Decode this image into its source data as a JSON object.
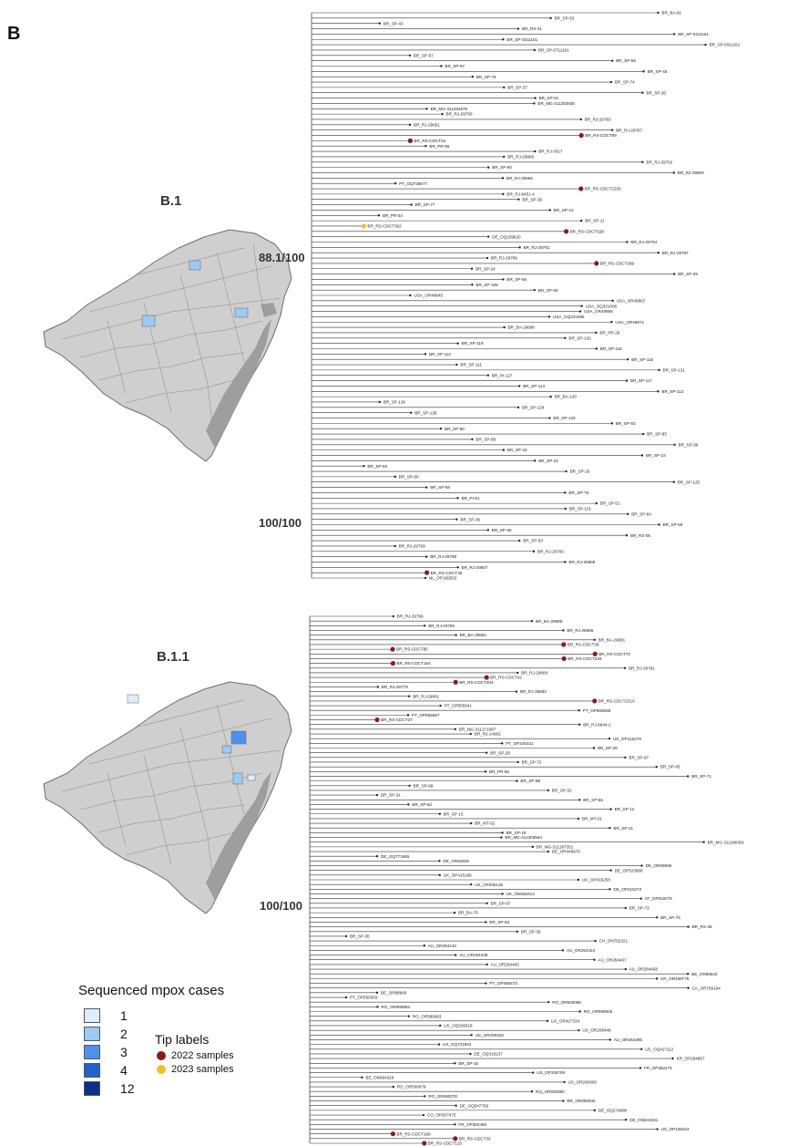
{
  "panel_label": "B",
  "maps": [
    {
      "title": "B.1"
    },
    {
      "title": "B.1.1"
    }
  ],
  "supports": {
    "tree1_node_a": "88.1/100",
    "tree1_node_b": "100/100",
    "tree2_node_a": "100/100"
  },
  "legend": {
    "title": "Sequenced mpox cases",
    "items": [
      {
        "label": "1",
        "color": "#dbeefc"
      },
      {
        "label": "2",
        "color": "#9ccaf2"
      },
      {
        "label": "3",
        "color": "#4d92ea"
      },
      {
        "label": "4",
        "color": "#1f62cc"
      },
      {
        "label": "12",
        "color": "#0b2f8a"
      }
    ]
  },
  "tip_labels": {
    "title": "Tip labels",
    "items": [
      {
        "label": "2022 samples",
        "color": "#8b1a1a"
      },
      {
        "label": "2023 samples",
        "color": "#f2c21b"
      }
    ]
  },
  "tree1_tips": [
    "BR_BA-81",
    "BR_SP-53",
    "BR_SP-43",
    "BR_RS-41",
    "BR_SP-0311161",
    "BR_SP-0311161",
    "BR_SP-0311161",
    "BR_SP-0711161",
    "BR_SP-57",
    "BR_SP-58",
    "BR_SP-67",
    "BR_SP-46",
    "BR_SP-76",
    "BR_SP-74",
    "BR_SP-37",
    "BR_SP-30",
    "BR_SP-61",
    "BR_MG-311283835",
    "BR_MG-311294876",
    "BR_RJ-29790",
    "BR_RJ-29783",
    "BR_RJ-29651",
    "BR_RJ-29787",
    "BR_RS-CDCT89",
    "BR_RS-CDCT34",
    "BR_PR-55",
    "BR_RJ-3017",
    "BR_RJ-29808",
    "BR_RJ-29792",
    "BR_SP-60",
    "BR_RJ-29800",
    "BR_RJ-29655",
    "PT_OQ738677",
    "BR_RS-CDCT2230",
    "BR_RJ-9451-4",
    "BR_SP-39",
    "BR_SP-77",
    "BR_SP-10",
    "BR_PR-54",
    "BR_SP-11",
    "BR_RS-CDCT362",
    "BR_RS-CDCT628",
    "DE_OQ159620",
    "BR_RJ-29784",
    "BR_RJ-29791",
    "BR_RJ-29797",
    "BR_RJ-29789",
    "BR_RS-CDCT399",
    "BR_SP-24",
    "BR_SP-25",
    "BR_SP-56",
    "BR_SP-108",
    "BR_SP-50",
    "USA_OR49845",
    "USA_OR49867",
    "USA_OQ331006",
    "USA_OR49968",
    "USA_OQ331085",
    "USA_OR49971",
    "BR_BA-29690",
    "BR_PR-26",
    "BR_SP-132",
    "BR_SP-119",
    "BR_SP-118",
    "BR_SP-112",
    "BR_SP-115",
    "BR_SP-111",
    "BR_SP-131",
    "BR_PI-127",
    "BR_SP-117",
    "BR_SP-114",
    "BR_SP-113",
    "BR_BA-120",
    "BR_SP-130",
    "BR_SP-129",
    "BR_SP-128",
    "BR_SP-126",
    "BR_SP-93",
    "BR_SP-90",
    "BR_SP-85",
    "BR_SP-89",
    "BR_SP-99",
    "BR_SP-33",
    "BR_SP-23",
    "BR_SP-22",
    "BR_SP-83",
    "BR_SP-20",
    "BR_SP-80",
    "BR_SP-125",
    "BR_SP-68",
    "BR_SP-79",
    "BR_PI-81",
    "BR_SP-51",
    "BR_SP-101",
    "BR_SP-84",
    "BR_SP-36",
    "BR_SP-59",
    "BR_SP-96",
    "BR_RS-05",
    "BR_SP-03",
    "BR_RJ-29799",
    "BR_RJ-29793",
    "BR_RJ-29798",
    "BR_RJ-29805",
    "BR_RJ-29807",
    "BR_RS-CDCT45",
    "NL_OP169532"
  ],
  "tree2_tips": [
    "BR_RJ-29796",
    "BR_BA-29688",
    "BR_RJ-29795",
    "BR_RJ-29656",
    "BR_BA-29684",
    "BR_BA-29681",
    "BR_RS-CDCT39",
    "BR_RS-CDCT85",
    "BR_RS-CDCT70",
    "BR_RS-CDCT329",
    "BR_RS-CDCT164",
    "BR_RJ-29781",
    "BR_RJ-29809",
    "BR_RS-CDCT42",
    "BR_RS-CDCT404",
    "BR_RJ-29779",
    "BR_RJ-29663",
    "BR_RJ-29801",
    "BR_RS-CDCT2216",
    "PT_OP555641",
    "PT_OP555569",
    "PT_OP555587",
    "BR_RS-CDCT27",
    "BR_RJ-6844-2",
    "BR_MG-311271087",
    "BR_RJ-14962",
    "UK_OP415278",
    "PT_OP245321",
    "BR_SP-29",
    "BR_SP-28",
    "BR_SP-97",
    "BR_SP-72",
    "BR_SP-45",
    "BR_PR-66",
    "BR_SP-71",
    "BR_SP-68",
    "BR_SP-69",
    "BR_SP-32",
    "BR_SP-31",
    "BR_SP-56",
    "BR_SP-62",
    "BR_SP-12",
    "BR_SP-15",
    "BR_MT-01",
    "BR_MT-02",
    "BR_SP-21",
    "BR_SP-16",
    "BR_MG-311303564",
    "BR_MG-311288391",
    "BR_MG-311287351",
    "DE_OR449670",
    "DE_OQ773465",
    "DE_OR84846",
    "DE_OR69668",
    "DE_OP523988",
    "UK_OP415188",
    "UK_OP415258",
    "UK_OP205125",
    "DE_OP215272",
    "UK_ON555413",
    "AT_OP819276",
    "BR_SP-87",
    "BR_SP-73",
    "BR_BA-76",
    "BR_SP-75",
    "BR_SP-63",
    "BR_RS-48",
    "BR_SP-38",
    "BR_SP-35",
    "CH_ON782321",
    "AU_OR284410",
    "AU_OR264424",
    "AU_OR264438",
    "AU_OR264437",
    "AU_OR264405",
    "AU_OR284458",
    "BE_OR86842",
    "KR_OR459775",
    "PT_OP555473",
    "CA_OR759194",
    "BE_OR88969",
    "PT_OP555659",
    "RO_OR500066",
    "RO_OR589984",
    "RO_OR589005",
    "RO_OR589063",
    "US_OR427334",
    "US_OQ326518",
    "US_OR208446",
    "US_OR209328",
    "AU_OR264385",
    "US_OQ721942",
    "US_OQ427112",
    "DE_OQ318137",
    "KR_OP294857",
    "BR_SP-34",
    "FR_OP382479",
    "US_OP105769",
    "BE_ON694329",
    "US_OR289308",
    "RO_OR500079",
    "RO_OR500080",
    "RO_OR580078",
    "BR_OR895036",
    "DE_OQ547759",
    "DE_OQ274890",
    "CO_OP837475",
    "DE_ON615331",
    "FR_OP382466",
    "US_OP108344",
    "BR_RS-CDCT168",
    "BR_RS-CDCT33",
    "BR_RS-CDCT125"
  ]
}
